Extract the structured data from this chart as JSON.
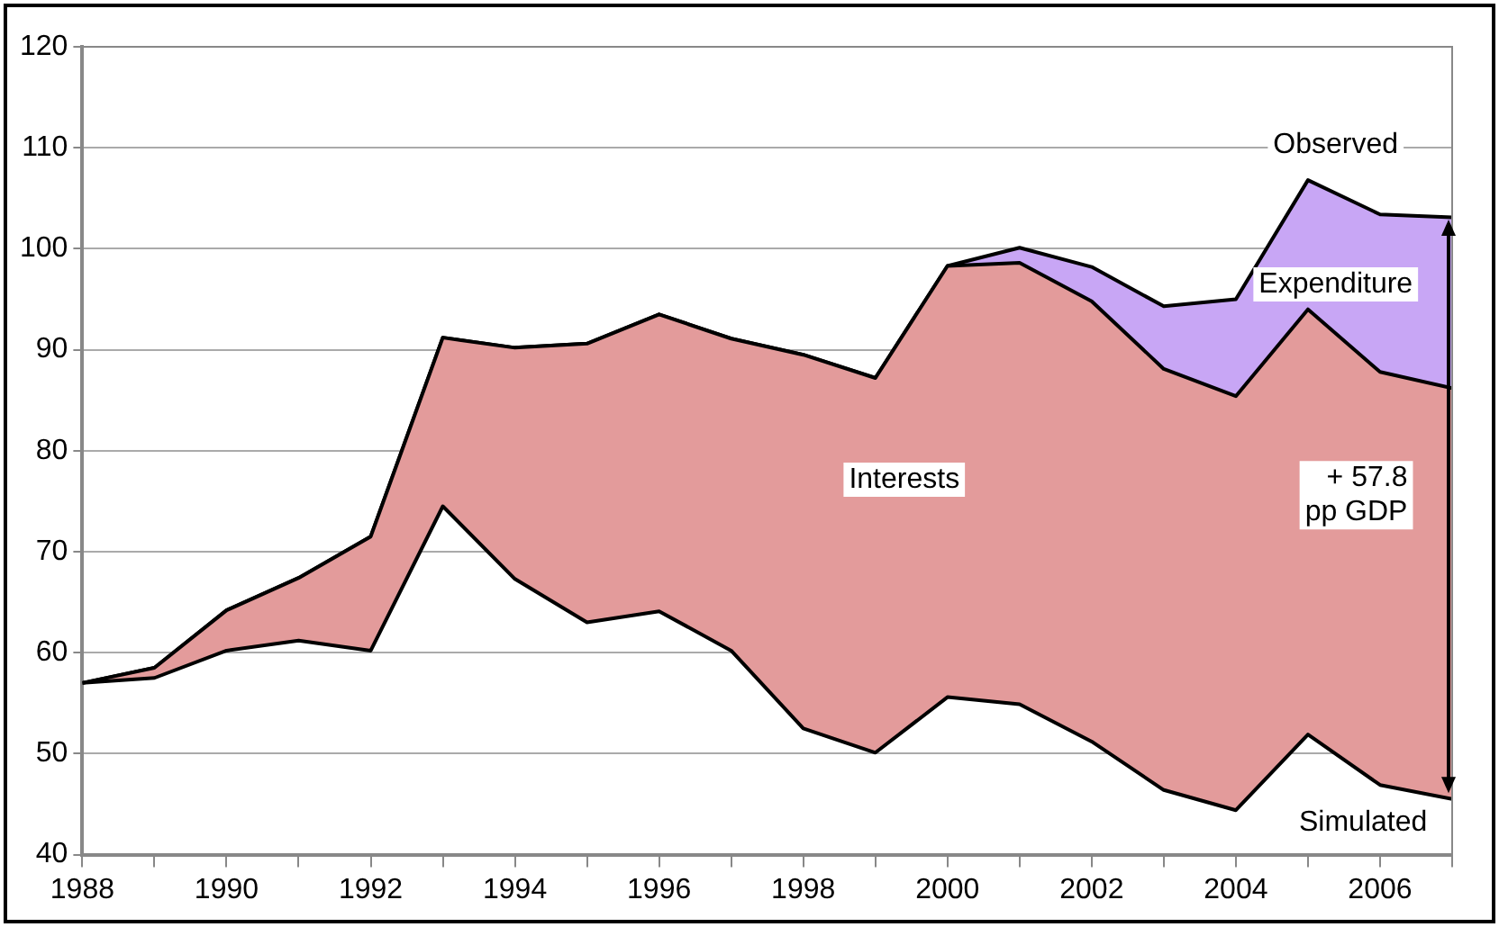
{
  "chart_data": {
    "type": "area",
    "x": [
      1988,
      1989,
      1990,
      1991,
      1992,
      1993,
      1994,
      1995,
      1996,
      1997,
      1998,
      1999,
      2000,
      2001,
      2002,
      2003,
      2004,
      2005,
      2006,
      2007
    ],
    "series": [
      {
        "type": "line",
        "color": "#000000",
        "values": [
          57,
          57.5,
          60.2,
          61.2,
          60.2,
          74.5,
          67.3,
          63,
          64.1,
          60.2,
          52.5,
          50.1,
          55.6,
          54.9,
          51.2,
          46.4,
          44.4,
          51.9,
          46.9,
          45.5
        ]
      },
      {
        "type": "area",
        "color": "#e39b9b",
        "values": [
          57,
          58.5,
          64.2,
          67.4,
          71.5,
          91.2,
          90.2,
          90.6,
          93.5,
          91.1,
          89.5,
          87.2,
          98.3,
          98.6,
          94.8,
          88.1,
          85.4,
          94,
          87.8,
          86.2
        ]
      },
      {
        "type": "area",
        "color": "#c8a6f5",
        "values": [
          57,
          58.5,
          64.2,
          67.4,
          71.5,
          91.2,
          90.2,
          90.6,
          93.5,
          91.1,
          89.5,
          87.2,
          98.3,
          100.1,
          98.2,
          94.3,
          95,
          106.8,
          103.4,
          103.1
        ]
      }
    ],
    "xlim": [
      1988,
      2007
    ],
    "xticks": [
      1988,
      {
        "value": 1989,
        "label": null
      },
      1990,
      {
        "value": 1991,
        "label": null
      },
      1992,
      {
        "value": 1993,
        "label": null
      },
      1994,
      {
        "value": 1995,
        "label": null
      },
      1996,
      {
        "value": 1997,
        "label": null
      },
      1998,
      {
        "value": 1999,
        "label": null
      },
      2000,
      {
        "value": 2001,
        "label": null
      },
      2002,
      {
        "value": 2003,
        "label": null
      },
      2004,
      {
        "value": 2005,
        "label": null
      },
      2006,
      {
        "value": 2007,
        "label": null
      }
    ],
    "ylim": [
      40,
      120
    ],
    "yticks": [
      40,
      50,
      60,
      70,
      80,
      90,
      100,
      110,
      120
    ],
    "grid": "y",
    "legend": false,
    "annotations": [
      "Observed",
      "Expenditure",
      "Interests",
      "+ 57.8\npp GDP",
      "Simulated"
    ]
  }
}
